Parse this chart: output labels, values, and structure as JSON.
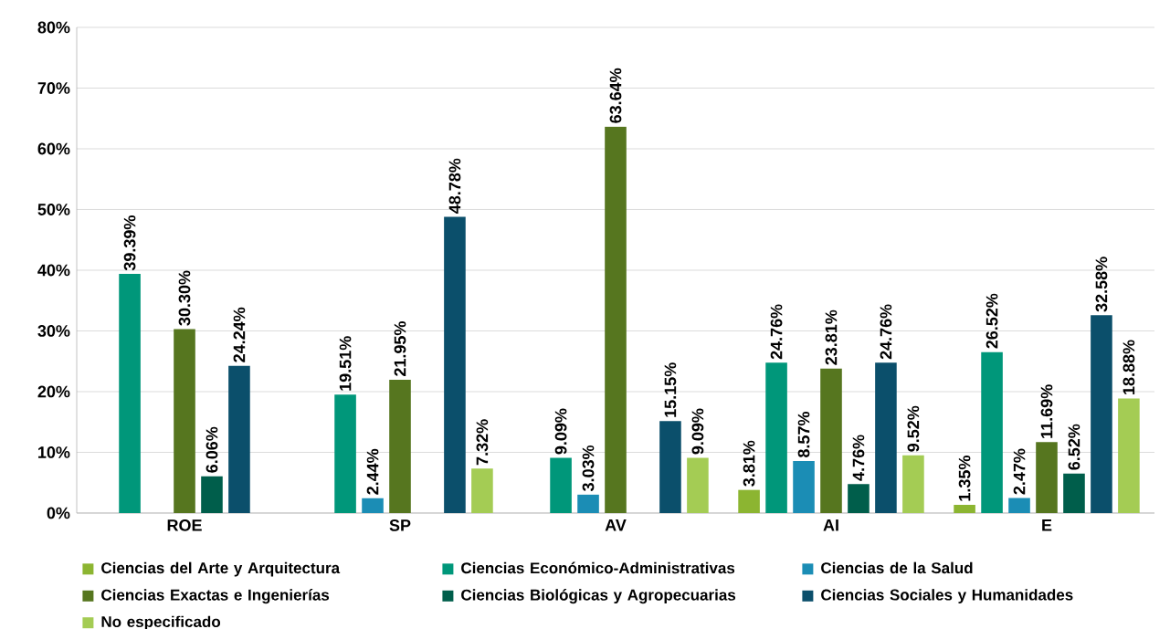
{
  "chart_data": {
    "type": "bar",
    "categories": [
      "ROE",
      "SP",
      "AV",
      "AI",
      "E"
    ],
    "ylim": [
      0,
      80
    ],
    "yticks": [
      {
        "value": 0,
        "label": "0%"
      },
      {
        "value": 10,
        "label": "10%"
      },
      {
        "value": 20,
        "label": "20%"
      },
      {
        "value": 30,
        "label": "30%"
      },
      {
        "value": 40,
        "label": "40%"
      },
      {
        "value": 50,
        "label": "50%"
      },
      {
        "value": 60,
        "label": "60%"
      },
      {
        "value": 70,
        "label": "70%"
      },
      {
        "value": 80,
        "label": "80%"
      }
    ],
    "grid": "y",
    "legend": "bottom",
    "series": [
      {
        "name": "Ciencias del Arte y Arquitectura",
        "color": "#8cb531",
        "values": [
          null,
          null,
          null,
          3.81,
          1.35
        ],
        "value_labels": [
          null,
          null,
          null,
          "3.81%",
          "1.35%"
        ]
      },
      {
        "name": "Ciencias Económico-Administrativas",
        "color": "#00977a",
        "values": [
          39.39,
          19.51,
          9.09,
          24.76,
          26.52
        ],
        "value_labels": [
          "39.39%",
          "19.51%",
          "9.09%",
          "24.76%",
          "26.52%"
        ]
      },
      {
        "name": "Ciencias de la Salud",
        "color": "#1b8db5",
        "values": [
          null,
          2.44,
          3.03,
          8.57,
          2.47
        ],
        "value_labels": [
          null,
          "2.44%",
          "3.03%",
          "8.57%",
          "2.47%"
        ]
      },
      {
        "name": "Ciencias Exactas e Ingenierías",
        "color": "#56761f",
        "values": [
          30.3,
          21.95,
          63.64,
          23.81,
          11.69
        ],
        "value_labels": [
          "30.30%",
          "21.95%",
          "63.64%",
          "23.81%",
          "11.69%"
        ]
      },
      {
        "name": "Ciencias Biológicas y Agropecuarias",
        "color": "#005e4b",
        "values": [
          6.06,
          null,
          null,
          4.76,
          6.52
        ],
        "value_labels": [
          "6.06%",
          null,
          null,
          "4.76%",
          "6.52%"
        ]
      },
      {
        "name": "Ciencias Sociales y Humanidades",
        "color": "#0b4f6b",
        "values": [
          24.24,
          48.78,
          15.15,
          24.76,
          32.58
        ],
        "value_labels": [
          "24.24%",
          "48.78%",
          "15.15%",
          "24.76%",
          "32.58%"
        ]
      },
      {
        "name": "No especificado",
        "color": "#a4cc54",
        "values": [
          null,
          7.32,
          9.09,
          9.52,
          18.88
        ],
        "value_labels": [
          null,
          "7.32%",
          "9.09%",
          "9.52%",
          "18.88%"
        ]
      }
    ]
  }
}
